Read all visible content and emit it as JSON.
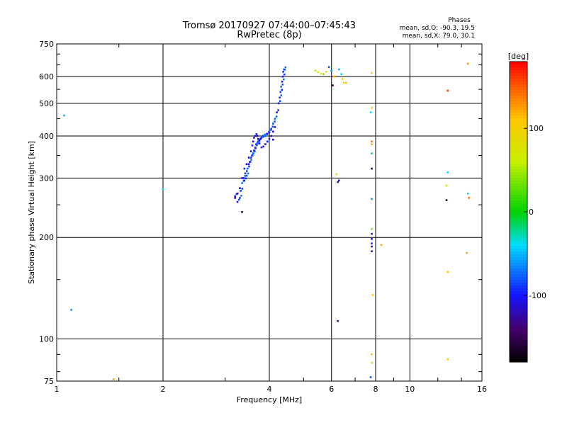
{
  "chart_data": {
    "type": "scatter",
    "title": "Tromsø 20170927 07:44:00–07:45:43",
    "subtitle": "RwPretec (8p)",
    "xlabel": "Frequency [MHz]",
    "ylabel": "Stationary phase Virtual Height [km]",
    "x_scale": "log",
    "y_scale": "log",
    "xlim": [
      1,
      16
    ],
    "ylim": [
      75,
      750
    ],
    "x_ticks": [
      1,
      2,
      4,
      6,
      8,
      10,
      16
    ],
    "y_ticks": [
      75,
      100,
      200,
      300,
      400,
      500,
      600,
      750
    ],
    "grid": true,
    "stats": {
      "heading": "Phases",
      "line1": "mean, sd,O: -90.3, 19.5",
      "line2": "mean, sd,X: 79.0, 30.1"
    },
    "colorbar": {
      "label": "[deg]",
      "range": [
        -180,
        180
      ],
      "ticks": [
        100,
        0,
        -100
      ]
    },
    "trace_O": [
      [
        3.2,
        265
      ],
      [
        3.25,
        255
      ],
      [
        3.3,
        262
      ],
      [
        3.32,
        275
      ],
      [
        3.35,
        290
      ],
      [
        3.38,
        300
      ],
      [
        3.4,
        295
      ],
      [
        3.42,
        310
      ],
      [
        3.45,
        305
      ],
      [
        3.47,
        320
      ],
      [
        3.5,
        330
      ],
      [
        3.52,
        335
      ],
      [
        3.55,
        345
      ],
      [
        3.57,
        350
      ],
      [
        3.6,
        355
      ],
      [
        3.62,
        362
      ],
      [
        3.65,
        370
      ],
      [
        3.67,
        378
      ],
      [
        3.7,
        380
      ],
      [
        3.72,
        385
      ],
      [
        3.75,
        388
      ],
      [
        3.78,
        392
      ],
      [
        3.8,
        395
      ],
      [
        3.85,
        398
      ],
      [
        3.9,
        400
      ],
      [
        3.95,
        405
      ],
      [
        4.0,
        410
      ],
      [
        4.05,
        420
      ],
      [
        4.1,
        435
      ],
      [
        4.15,
        450
      ],
      [
        4.2,
        470
      ],
      [
        4.25,
        500
      ],
      [
        4.28,
        520
      ],
      [
        4.3,
        540
      ],
      [
        4.32,
        560
      ],
      [
        4.35,
        580
      ],
      [
        4.37,
        600
      ],
      [
        4.38,
        620
      ],
      [
        4.4,
        630
      ]
    ],
    "trace_X": [
      [
        3.25,
        270
      ],
      [
        3.3,
        280
      ],
      [
        3.35,
        300
      ],
      [
        3.4,
        320
      ],
      [
        3.45,
        330
      ],
      [
        3.5,
        345
      ],
      [
        3.55,
        360
      ],
      [
        3.58,
        375
      ],
      [
        3.6,
        385
      ],
      [
        3.62,
        395
      ],
      [
        3.65,
        400
      ],
      [
        3.68,
        405
      ],
      [
        3.7,
        400
      ],
      [
        3.72,
        392
      ],
      [
        3.75,
        380
      ],
      [
        3.8,
        370
      ],
      [
        3.85,
        372
      ],
      [
        3.9,
        378
      ],
      [
        3.95,
        385
      ],
      [
        4.0,
        392
      ],
      [
        4.05,
        400
      ],
      [
        4.1,
        412
      ],
      [
        4.15,
        425
      ]
    ],
    "scattered_points": [
      {
        "x": 1.05,
        "y": 460,
        "phase": -50
      },
      {
        "x": 1.1,
        "y": 122,
        "phase": -60
      },
      {
        "x": 1.45,
        "y": 76,
        "phase": 120
      },
      {
        "x": 2.0,
        "y": 278,
        "phase": -40
      },
      {
        "x": 3.35,
        "y": 238,
        "phase": -160
      },
      {
        "x": 3.2,
        "y": 262,
        "phase": -130
      },
      {
        "x": 4.1,
        "y": 390,
        "phase": -120
      },
      {
        "x": 5.4,
        "y": 625,
        "phase": 80
      },
      {
        "x": 5.5,
        "y": 618,
        "phase": 70
      },
      {
        "x": 5.6,
        "y": 612,
        "phase": 60
      },
      {
        "x": 5.7,
        "y": 610,
        "phase": 40
      },
      {
        "x": 5.8,
        "y": 620,
        "phase": 90
      },
      {
        "x": 5.9,
        "y": 640,
        "phase": -80
      },
      {
        "x": 6.0,
        "y": 625,
        "phase": -60
      },
      {
        "x": 6.05,
        "y": 565,
        "phase": -150
      },
      {
        "x": 6.1,
        "y": 600,
        "phase": 120
      },
      {
        "x": 6.3,
        "y": 630,
        "phase": -50
      },
      {
        "x": 6.4,
        "y": 610,
        "phase": -40
      },
      {
        "x": 6.45,
        "y": 590,
        "phase": 100
      },
      {
        "x": 6.5,
        "y": 575,
        "phase": 110
      },
      {
        "x": 6.6,
        "y": 575,
        "phase": 100
      },
      {
        "x": 6.2,
        "y": 308,
        "phase": 90
      },
      {
        "x": 6.25,
        "y": 292,
        "phase": -120
      },
      {
        "x": 6.3,
        "y": 295,
        "phase": -110
      },
      {
        "x": 6.25,
        "y": 113,
        "phase": -120
      },
      {
        "x": 7.8,
        "y": 615,
        "phase": 100
      },
      {
        "x": 7.8,
        "y": 485,
        "phase": 110
      },
      {
        "x": 7.75,
        "y": 470,
        "phase": -40
      },
      {
        "x": 7.8,
        "y": 385,
        "phase": 140
      },
      {
        "x": 7.8,
        "y": 378,
        "phase": 120
      },
      {
        "x": 7.8,
        "y": 355,
        "phase": -20
      },
      {
        "x": 7.8,
        "y": 320,
        "phase": -150
      },
      {
        "x": 7.8,
        "y": 260,
        "phase": -60
      },
      {
        "x": 7.8,
        "y": 212,
        "phase": 40
      },
      {
        "x": 7.8,
        "y": 205,
        "phase": -100
      },
      {
        "x": 7.8,
        "y": 198,
        "phase": -110
      },
      {
        "x": 7.8,
        "y": 192,
        "phase": -90
      },
      {
        "x": 7.8,
        "y": 188,
        "phase": -120
      },
      {
        "x": 7.8,
        "y": 182,
        "phase": -115
      },
      {
        "x": 8.3,
        "y": 190,
        "phase": 120
      },
      {
        "x": 7.85,
        "y": 135,
        "phase": 110
      },
      {
        "x": 7.8,
        "y": 90,
        "phase": 110
      },
      {
        "x": 7.8,
        "y": 85,
        "phase": 60
      },
      {
        "x": 7.75,
        "y": 77,
        "phase": -80
      },
      {
        "x": 12.8,
        "y": 545,
        "phase": 160
      },
      {
        "x": 12.8,
        "y": 312,
        "phase": -40
      },
      {
        "x": 12.7,
        "y": 285,
        "phase": 60
      },
      {
        "x": 12.7,
        "y": 258,
        "phase": -160
      },
      {
        "x": 12.8,
        "y": 158,
        "phase": 110
      },
      {
        "x": 12.8,
        "y": 87,
        "phase": 110
      },
      {
        "x": 14.6,
        "y": 655,
        "phase": 130
      },
      {
        "x": 14.6,
        "y": 270,
        "phase": -30
      },
      {
        "x": 14.7,
        "y": 262,
        "phase": 140
      },
      {
        "x": 14.5,
        "y": 180,
        "phase": 120
      }
    ]
  }
}
